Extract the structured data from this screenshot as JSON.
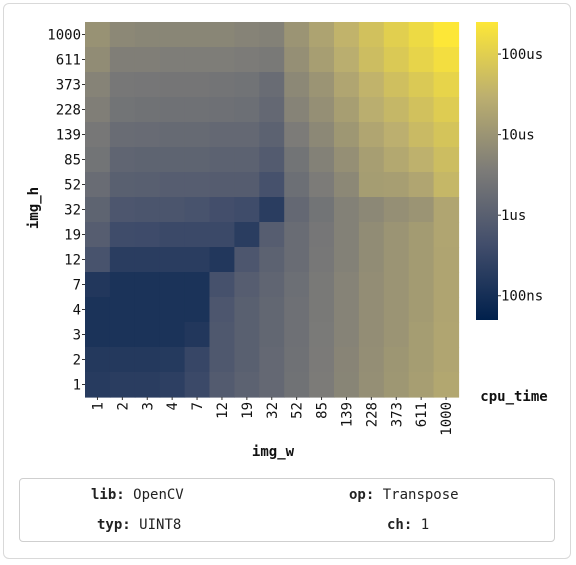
{
  "chart_data": {
    "type": "heatmap",
    "xlabel": "img_w",
    "ylabel": "img_h",
    "x_categories": [
      "1",
      "2",
      "3",
      "4",
      "7",
      "12",
      "19",
      "32",
      "52",
      "85",
      "139",
      "228",
      "373",
      "611",
      "1000"
    ],
    "y_categories": [
      "1000",
      "611",
      "373",
      "228",
      "139",
      "85",
      "52",
      "32",
      "19",
      "12",
      "7",
      "4",
      "3",
      "2",
      "1"
    ],
    "colorbar": {
      "label": "cpu_time",
      "scale": "log",
      "ticks": [
        "100ns",
        "1us",
        "10us",
        "100us"
      ],
      "tick_values_ns": [
        100,
        1000,
        10000,
        100000
      ],
      "range_ns": [
        50,
        250000
      ],
      "colormap": [
        "#00204c",
        "#414d6b",
        "#7c7b78",
        "#bcaf6f",
        "#fde737"
      ]
    },
    "values_ns": [
      [
        9000,
        6000,
        5500,
        5500,
        5500,
        5500,
        5000,
        4500,
        10000,
        18000,
        35000,
        60000,
        100000,
        150000,
        250000
      ],
      [
        7000,
        4000,
        4000,
        3800,
        3800,
        3800,
        3500,
        3200,
        8000,
        15000,
        28000,
        50000,
        80000,
        120000,
        180000
      ],
      [
        5000,
        3000,
        2800,
        2700,
        2700,
        2600,
        2400,
        1800,
        6000,
        10000,
        20000,
        35000,
        55000,
        80000,
        120000
      ],
      [
        4000,
        2500,
        2300,
        2200,
        2200,
        2100,
        2000,
        1500,
        5000,
        8000,
        15000,
        28000,
        40000,
        60000,
        90000
      ],
      [
        3000,
        1800,
        1700,
        1600,
        1600,
        1500,
        1500,
        1100,
        3500,
        6000,
        11000,
        20000,
        30000,
        45000,
        65000
      ],
      [
        2500,
        1300,
        1200,
        1200,
        1200,
        1100,
        1100,
        800,
        2500,
        4500,
        8000,
        15000,
        22000,
        32000,
        50000
      ],
      [
        1800,
        1000,
        950,
        900,
        900,
        850,
        850,
        500,
        2000,
        3500,
        6000,
        14000,
        15000,
        20000,
        40000
      ],
      [
        1200,
        650,
        600,
        600,
        550,
        450,
        400,
        200,
        1500,
        2500,
        4500,
        6000,
        8000,
        10000,
        20000
      ],
      [
        900,
        400,
        380,
        350,
        350,
        350,
        200,
        900,
        1800,
        2800,
        4500,
        7000,
        10000,
        13000,
        20000
      ],
      [
        550,
        200,
        200,
        200,
        200,
        150,
        650,
        1100,
        1800,
        3000,
        4500,
        7000,
        10000,
        13000,
        19000
      ],
      [
        150,
        120,
        120,
        120,
        120,
        500,
        900,
        1300,
        2000,
        3200,
        5000,
        7500,
        10000,
        13000,
        19000
      ],
      [
        120,
        120,
        120,
        120,
        120,
        650,
        1000,
        1400,
        2100,
        3200,
        5000,
        7500,
        10000,
        13000,
        19000
      ],
      [
        120,
        120,
        120,
        120,
        150,
        700,
        1000,
        1400,
        2100,
        3300,
        5000,
        7500,
        10000,
        14000,
        20000
      ],
      [
        160,
        160,
        160,
        170,
        300,
        700,
        1000,
        1500,
        2200,
        3400,
        5200,
        7800,
        10500,
        14000,
        20000
      ],
      [
        180,
        200,
        200,
        220,
        350,
        800,
        1100,
        1500,
        2300,
        3500,
        5300,
        8000,
        11000,
        15000,
        21000
      ]
    ]
  },
  "info": {
    "lib_key": "lib:",
    "lib_val": "OpenCV",
    "op_key": "op:",
    "op_val": "Transpose",
    "typ_key": "typ:",
    "typ_val": "UINT8",
    "ch_key": "ch:",
    "ch_val": "1"
  }
}
